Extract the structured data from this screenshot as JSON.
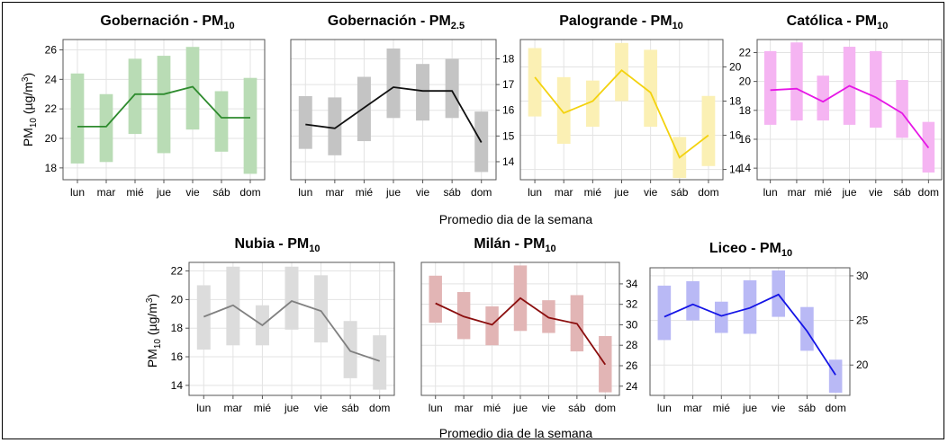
{
  "figure": {
    "xlabel_top": "Promedio dia de la semana",
    "xlabel_bottom": "Promedio dia de la semana",
    "ylabel": "PM10 (µg/m3)",
    "ylabel_parts": {
      "base": "PM",
      "sub": "10",
      "unit_pre": " (µg/m",
      "unit_sup": "3",
      "unit_post": ")"
    }
  },
  "chart_data": [
    {
      "type": "line",
      "title": "Gobernación - PM10",
      "title_main": "Gobernación - PM",
      "title_sub": "10",
      "categories": [
        "lun",
        "mar",
        "mié",
        "jue",
        "vie",
        "sáb",
        "dom"
      ],
      "values": [
        20.8,
        20.8,
        23.0,
        23.0,
        23.5,
        21.4,
        21.4
      ],
      "low": [
        18.3,
        18.4,
        20.3,
        19.0,
        20.6,
        19.1,
        17.6
      ],
      "high": [
        24.4,
        23.0,
        25.4,
        25.6,
        26.2,
        23.2,
        24.1
      ],
      "ylim": [
        17.2,
        26.7
      ],
      "yticks": [
        18,
        20,
        22,
        24,
        26
      ],
      "y_axis_side": "left",
      "line_color": "#2e8b2e",
      "band_color": "#b9dcb5"
    },
    {
      "type": "line",
      "title": "Gobernación - PM2.5",
      "title_main": "Gobernación - PM",
      "title_sub": "2.5",
      "categories": [
        "lun",
        "mar",
        "mié",
        "jue",
        "vie",
        "sáb",
        "dom"
      ],
      "values": [
        15.45,
        15.3,
        16.1,
        16.9,
        16.75,
        16.75,
        14.75
      ],
      "low": [
        14.5,
        14.25,
        14.8,
        15.7,
        15.6,
        15.7,
        13.6
      ],
      "high": [
        16.55,
        16.5,
        17.3,
        18.4,
        17.8,
        18.0,
        15.95
      ],
      "ylim": [
        13.3,
        18.75
      ],
      "yticks": [
        14,
        15,
        16,
        17,
        18
      ],
      "y_axis_side": "right",
      "line_color": "#111111",
      "band_color": "#c4c4c4"
    },
    {
      "type": "line",
      "title": "Palogrande - PM10",
      "title_main": "Palogrande - PM",
      "title_sub": "10",
      "categories": [
        "lun",
        "mar",
        "mié",
        "jue",
        "vie",
        "sáb",
        "dom"
      ],
      "values": [
        19.4,
        17.3,
        18.0,
        19.8,
        18.5,
        14.7,
        16.0
      ],
      "low": [
        17.1,
        15.5,
        16.5,
        18.0,
        16.5,
        13.5,
        14.2
      ],
      "high": [
        21.1,
        19.4,
        19.2,
        21.4,
        21.0,
        15.9,
        18.3
      ],
      "ylim": [
        13.4,
        21.6
      ],
      "yticks": [
        14,
        16,
        18,
        20
      ],
      "y_axis_side": "right",
      "line_color": "#f3d20f",
      "band_color": "#fbf0b4"
    },
    {
      "type": "line",
      "title": "Católica - PM10",
      "title_main": "Católica - PM",
      "title_sub": "10",
      "categories": [
        "lun",
        "mar",
        "mié",
        "jue",
        "vie",
        "sáb",
        "dom"
      ],
      "values": [
        19.4,
        19.5,
        18.6,
        19.7,
        18.9,
        17.8,
        15.4
      ],
      "low": [
        17.0,
        17.3,
        17.3,
        17.0,
        16.8,
        16.1,
        13.7
      ],
      "high": [
        22.1,
        22.7,
        20.4,
        22.4,
        22.1,
        20.1,
        17.2
      ],
      "ylim": [
        13.2,
        22.9
      ],
      "yticks": [
        14,
        16,
        18,
        20,
        22
      ],
      "y_axis_side": "left",
      "line_color": "#e617e6",
      "band_color": "#f5b4f2"
    },
    {
      "type": "line",
      "title": "Nubia - PM10",
      "title_main": "Nubia - PM",
      "title_sub": "10",
      "categories": [
        "lun",
        "mar",
        "mié",
        "jue",
        "vie",
        "sáb",
        "dom"
      ],
      "values": [
        18.8,
        19.6,
        18.2,
        19.9,
        19.2,
        16.4,
        15.7
      ],
      "low": [
        16.5,
        16.8,
        16.8,
        17.9,
        17.0,
        14.5,
        13.7
      ],
      "high": [
        21.0,
        22.3,
        19.6,
        22.3,
        21.7,
        18.5,
        17.5
      ],
      "ylim": [
        13.3,
        22.6
      ],
      "yticks": [
        14,
        16,
        18,
        20,
        22
      ],
      "y_axis_side": "left",
      "line_color": "#808080",
      "band_color": "#dcdcdc"
    },
    {
      "type": "line",
      "title": "Milán - PM10",
      "title_main": "Milán - PM",
      "title_sub": "10",
      "categories": [
        "lun",
        "mar",
        "mié",
        "jue",
        "vie",
        "sáb",
        "dom"
      ],
      "values": [
        32.1,
        30.8,
        30.0,
        32.6,
        30.7,
        30.1,
        26.1
      ],
      "low": [
        30.2,
        28.6,
        28.0,
        29.4,
        29.2,
        27.4,
        23.4
      ],
      "high": [
        34.8,
        33.2,
        31.8,
        35.8,
        32.4,
        32.9,
        28.9
      ],
      "ylim": [
        23.1,
        36.1
      ],
      "yticks": [
        24,
        26,
        28,
        30,
        32,
        34
      ],
      "y_axis_side": "right",
      "line_color": "#8b0e0e",
      "band_color": "#e2b5b5"
    },
    {
      "type": "line",
      "title": "Liceo - PM10",
      "title_main": "Liceo - PM",
      "title_sub": "10",
      "categories": [
        "lun",
        "mar",
        "mié",
        "jue",
        "vie",
        "sáb",
        "dom"
      ],
      "values": [
        25.4,
        26.8,
        25.5,
        26.4,
        27.9,
        23.8,
        18.9
      ],
      "low": [
        22.8,
        25.0,
        23.6,
        23.5,
        25.4,
        21.6,
        16.9
      ],
      "high": [
        28.9,
        29.4,
        27.1,
        29.5,
        30.6,
        26.5,
        20.6
      ],
      "ylim": [
        16.6,
        30.9
      ],
      "yticks": [
        20,
        25,
        30
      ],
      "y_axis_side": "right",
      "line_color": "#1414e6",
      "band_color": "#b9b9f5"
    }
  ]
}
